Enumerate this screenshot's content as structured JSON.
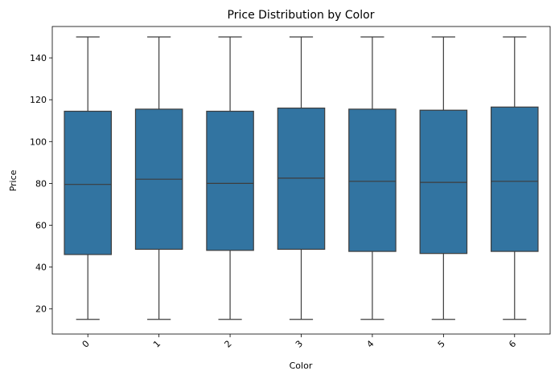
{
  "chart_data": {
    "type": "box",
    "title": "Price Distribution by Color",
    "xlabel": "Color",
    "ylabel": "Price",
    "categories": [
      "0",
      "1",
      "2",
      "3",
      "4",
      "5",
      "6"
    ],
    "ylim": [
      8,
      155
    ],
    "yticks": [
      20,
      40,
      60,
      80,
      100,
      120,
      140
    ],
    "boxes": [
      {
        "min": 15,
        "q1": 46,
        "median": 79.5,
        "q3": 114.5,
        "max": 150
      },
      {
        "min": 15,
        "q1": 48.5,
        "median": 82,
        "q3": 115.5,
        "max": 150
      },
      {
        "min": 15,
        "q1": 48,
        "median": 80,
        "q3": 114.5,
        "max": 150
      },
      {
        "min": 15,
        "q1": 48.5,
        "median": 82.5,
        "q3": 116,
        "max": 150
      },
      {
        "min": 15,
        "q1": 47.5,
        "median": 81,
        "q3": 115.5,
        "max": 150
      },
      {
        "min": 15,
        "q1": 46.5,
        "median": 80.5,
        "q3": 115,
        "max": 150
      },
      {
        "min": 15,
        "q1": 47.5,
        "median": 81,
        "q3": 116.5,
        "max": 150
      }
    ],
    "box_color": "#3274a1",
    "line_color": "#3d3d3d",
    "grid": false,
    "xtick_rotation": "45 degrees"
  }
}
